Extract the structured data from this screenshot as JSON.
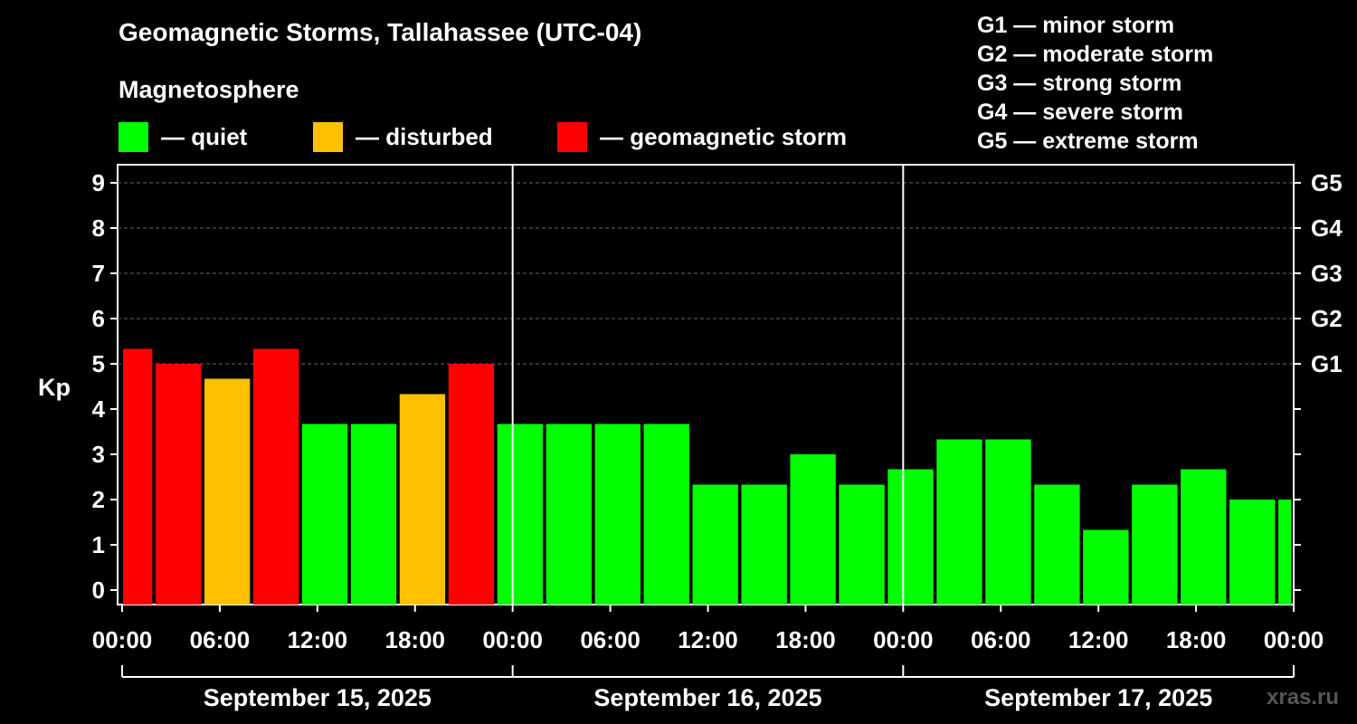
{
  "title": "Geomagnetic Storms, Tallahassee (UTC-04)",
  "subtitle": "Magnetosphere",
  "legend": [
    {
      "label": "— quiet",
      "color": "#00ff00"
    },
    {
      "label": "— disturbed",
      "color": "#ffc000"
    },
    {
      "label": "— geomagnetic storm",
      "color": "#ff0000"
    }
  ],
  "storm_scale": [
    "G1 — minor storm",
    "G2 — moderate storm",
    "G3 — strong storm",
    "G4 — severe storm",
    "G5 — extreme storm"
  ],
  "watermark": "xras.ru",
  "chart_data": {
    "type": "bar",
    "title": "Geomagnetic Storms, Tallahassee (UTC-04)",
    "ylabel": "Kp",
    "ylim": [
      0,
      9
    ],
    "yticks": [
      0,
      1,
      2,
      3,
      4,
      5,
      6,
      7,
      8,
      9
    ],
    "right_ticks": [
      {
        "value": 5,
        "label": "G1"
      },
      {
        "value": 6,
        "label": "G2"
      },
      {
        "value": 7,
        "label": "G3"
      },
      {
        "value": 8,
        "label": "G4"
      },
      {
        "value": 9,
        "label": "G5"
      }
    ],
    "x_range_hours": [
      0,
      72
    ],
    "x_ticks": [
      {
        "hour": 0,
        "label": "00:00"
      },
      {
        "hour": 6,
        "label": "06:00"
      },
      {
        "hour": 12,
        "label": "12:00"
      },
      {
        "hour": 18,
        "label": "18:00"
      },
      {
        "hour": 24,
        "label": "00:00"
      },
      {
        "hour": 30,
        "label": "06:00"
      },
      {
        "hour": 36,
        "label": "12:00"
      },
      {
        "hour": 42,
        "label": "18:00"
      },
      {
        "hour": 48,
        "label": "00:00"
      },
      {
        "hour": 54,
        "label": "06:00"
      },
      {
        "hour": 60,
        "label": "12:00"
      },
      {
        "hour": 66,
        "label": "18:00"
      },
      {
        "hour": 72,
        "label": "00:00"
      }
    ],
    "days": [
      {
        "label": "September 15, 2025",
        "start_hour": 0
      },
      {
        "label": "September 16, 2025",
        "start_hour": 24
      },
      {
        "label": "September 17, 2025",
        "start_hour": 48
      }
    ],
    "day_separators_hours": [
      24,
      48
    ],
    "gridlines": [
      5,
      6,
      7,
      8,
      9
    ],
    "bars": [
      {
        "start": 0,
        "end": 1.8,
        "kp": 5.33,
        "level": "storm"
      },
      {
        "start": 2,
        "end": 4.8,
        "kp": 5.0,
        "level": "storm"
      },
      {
        "start": 5,
        "end": 7.8,
        "kp": 4.67,
        "level": "disturbed"
      },
      {
        "start": 8,
        "end": 10.8,
        "kp": 5.33,
        "level": "storm"
      },
      {
        "start": 11,
        "end": 13.8,
        "kp": 3.67,
        "level": "quiet"
      },
      {
        "start": 14,
        "end": 16.8,
        "kp": 3.67,
        "level": "quiet"
      },
      {
        "start": 17,
        "end": 19.8,
        "kp": 4.33,
        "level": "disturbed"
      },
      {
        "start": 20,
        "end": 22.8,
        "kp": 5.0,
        "level": "storm"
      },
      {
        "start": 23,
        "end": 25.8,
        "kp": 3.67,
        "level": "quiet"
      },
      {
        "start": 26,
        "end": 28.8,
        "kp": 3.67,
        "level": "quiet"
      },
      {
        "start": 29,
        "end": 31.8,
        "kp": 3.67,
        "level": "quiet"
      },
      {
        "start": 32,
        "end": 34.8,
        "kp": 3.67,
        "level": "quiet"
      },
      {
        "start": 35,
        "end": 37.8,
        "kp": 2.33,
        "level": "quiet"
      },
      {
        "start": 38,
        "end": 40.8,
        "kp": 2.33,
        "level": "quiet"
      },
      {
        "start": 41,
        "end": 43.8,
        "kp": 3.0,
        "level": "quiet"
      },
      {
        "start": 44,
        "end": 46.8,
        "kp": 2.33,
        "level": "quiet"
      },
      {
        "start": 47,
        "end": 49.8,
        "kp": 2.67,
        "level": "quiet"
      },
      {
        "start": 50,
        "end": 52.8,
        "kp": 3.33,
        "level": "quiet"
      },
      {
        "start": 53,
        "end": 55.8,
        "kp": 3.33,
        "level": "quiet"
      },
      {
        "start": 56,
        "end": 58.8,
        "kp": 2.33,
        "level": "quiet"
      },
      {
        "start": 59,
        "end": 61.8,
        "kp": 1.33,
        "level": "quiet"
      },
      {
        "start": 62,
        "end": 64.8,
        "kp": 2.33,
        "level": "quiet"
      },
      {
        "start": 65,
        "end": 67.8,
        "kp": 2.67,
        "level": "quiet"
      },
      {
        "start": 68,
        "end": 70.8,
        "kp": 2.0,
        "level": "quiet"
      },
      {
        "start": 71,
        "end": 71.8,
        "kp": 2.0,
        "level": "quiet"
      }
    ],
    "level_colors": {
      "quiet": "#00ff00",
      "disturbed": "#ffc000",
      "storm": "#ff0000"
    }
  }
}
